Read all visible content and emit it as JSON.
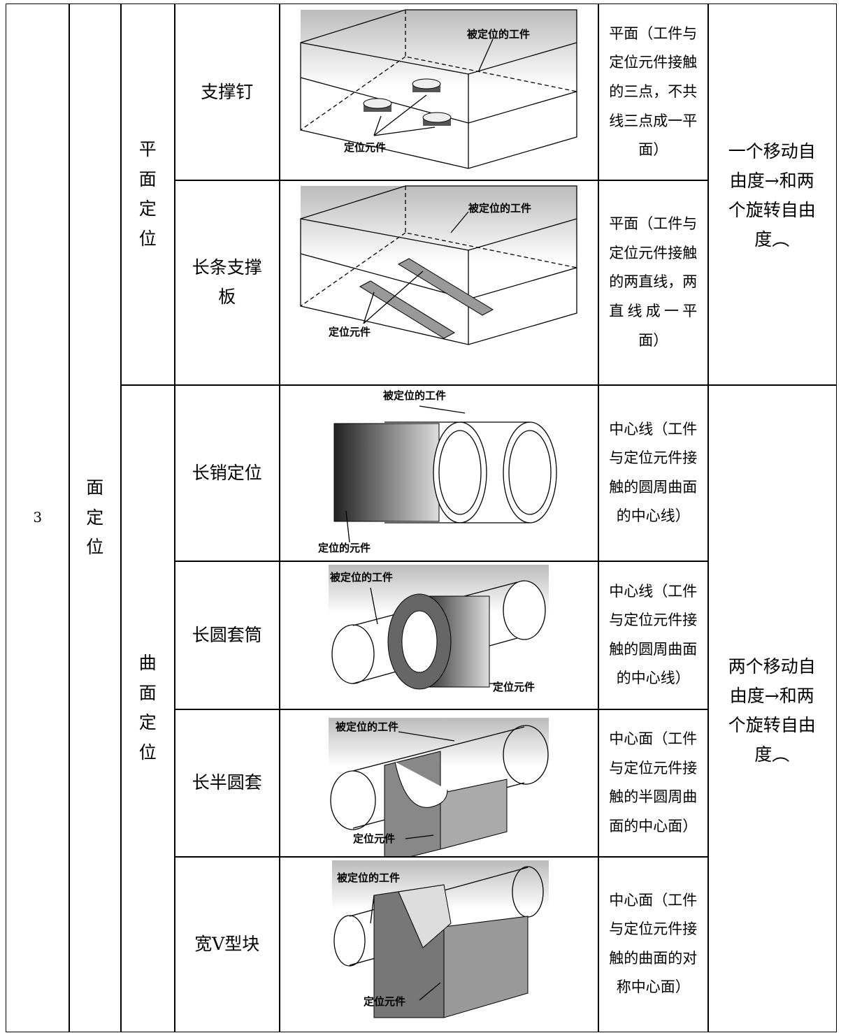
{
  "table": {
    "number": "3",
    "category": "面定位",
    "groups": [
      {
        "name": "平面定位",
        "freedom": "一个移动自由度→和两个旋转自由度︵",
        "rows": [
          {
            "element": "支撑钉",
            "labels": [
              "被定位的工件",
              "定位元件"
            ],
            "result": "平面（工件与定位元件接触的三点，不共线三点成一平面）"
          },
          {
            "element": "长条支撑板",
            "labels": [
              "被定位的工件",
              "定位元件"
            ],
            "result": "平面（工件与定位元件接触的两直线，两直线成一平面）"
          }
        ]
      },
      {
        "name": "曲面定位",
        "freedom": "两个移动自由度→和两个旋转自由度︵",
        "rows": [
          {
            "element": "长销定位",
            "labels": [
              "被定位的工件",
              "定位的元件"
            ],
            "result": "中心线（工件与定位元件接触的圆周曲面的中心线）"
          },
          {
            "element": "长圆套筒",
            "labels": [
              "被定位的工件",
              "定位元件"
            ],
            "result": "中心线（工件与定位元件接触的圆周曲面的中心线）"
          },
          {
            "element": "长半圆套",
            "labels": [
              "被定位的工件",
              "定位元件"
            ],
            "result": "中心面（工件与定位元件接触的半圆周曲面的中心面）"
          },
          {
            "element": "宽V型块",
            "labels": [
              "被定位的工件",
              "定位元件"
            ],
            "result": "中心面（工件与定位元件接触的曲面的对称中心面）"
          }
        ]
      }
    ]
  }
}
